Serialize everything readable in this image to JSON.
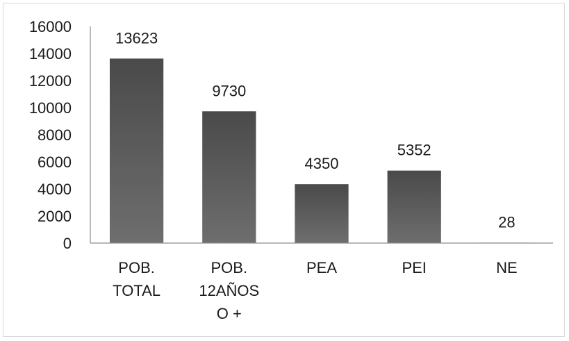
{
  "chart_data": {
    "type": "bar",
    "categories": [
      [
        "POB.",
        "TOTAL"
      ],
      [
        "POB.",
        "12AÑOS",
        "O +"
      ],
      [
        "PEA"
      ],
      [
        "PEI"
      ],
      [
        "NE"
      ]
    ],
    "values": [
      13623,
      9730,
      4350,
      5352,
      28
    ],
    "data_labels": [
      "13623",
      "9730",
      "4350",
      "5352",
      "28"
    ],
    "ylim": [
      0,
      16000
    ],
    "yticks": [
      "0",
      "2000",
      "4000",
      "6000",
      "8000",
      "10000",
      "12000",
      "14000",
      "16000"
    ],
    "title": "",
    "xlabel": "",
    "ylabel": "",
    "grid": false,
    "legend": "none",
    "colors": {
      "bar_top": "#4a4a4a",
      "bar_bottom": "#6e6e6e",
      "axis": "#8c8c8c"
    }
  }
}
